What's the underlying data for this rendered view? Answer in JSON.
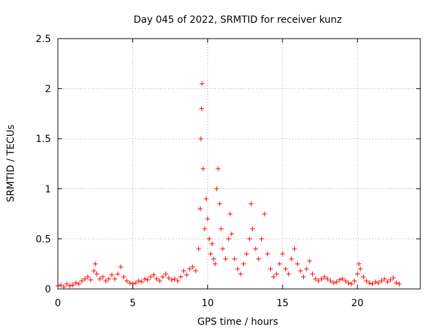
{
  "chart_data": {
    "type": "scatter",
    "title": "Day 045 of 2022, SRMTID for receiver kunz",
    "xlabel": "GPS time / hours",
    "ylabel": "SRMTID / TECUs",
    "xlim": [
      0,
      24.2
    ],
    "ylim": [
      0,
      2.5
    ],
    "x_ticks": [
      0,
      5,
      10,
      15,
      20
    ],
    "x_tick_labels": [
      "0",
      "5",
      "10",
      "15",
      "20"
    ],
    "y_ticks": [
      0,
      0.5,
      1,
      1.5,
      2,
      2.5
    ],
    "y_tick_labels": [
      "0",
      "0.5",
      "1",
      "1.5",
      "2",
      "2.5"
    ],
    "grid": true,
    "marker": "plus",
    "marker_color": "#ff0000",
    "series": [
      {
        "name": "SRMTID",
        "points": [
          [
            0.0,
            0.03
          ],
          [
            0.2,
            0.04
          ],
          [
            0.4,
            0.02
          ],
          [
            0.6,
            0.05
          ],
          [
            0.8,
            0.03
          ],
          [
            1.0,
            0.04
          ],
          [
            1.2,
            0.06
          ],
          [
            1.4,
            0.05
          ],
          [
            1.6,
            0.08
          ],
          [
            1.8,
            0.1
          ],
          [
            2.0,
            0.12
          ],
          [
            2.2,
            0.09
          ],
          [
            2.4,
            0.18
          ],
          [
            2.5,
            0.25
          ],
          [
            2.6,
            0.15
          ],
          [
            2.8,
            0.1
          ],
          [
            3.0,
            0.12
          ],
          [
            3.2,
            0.08
          ],
          [
            3.4,
            0.1
          ],
          [
            3.6,
            0.14
          ],
          [
            3.8,
            0.1
          ],
          [
            4.0,
            0.15
          ],
          [
            4.2,
            0.22
          ],
          [
            4.4,
            0.12
          ],
          [
            4.6,
            0.08
          ],
          [
            4.8,
            0.06
          ],
          [
            5.0,
            0.05
          ],
          [
            5.2,
            0.06
          ],
          [
            5.4,
            0.08
          ],
          [
            5.6,
            0.07
          ],
          [
            5.8,
            0.1
          ],
          [
            6.0,
            0.09
          ],
          [
            6.2,
            0.12
          ],
          [
            6.4,
            0.14
          ],
          [
            6.6,
            0.1
          ],
          [
            6.8,
            0.08
          ],
          [
            7.0,
            0.12
          ],
          [
            7.2,
            0.15
          ],
          [
            7.4,
            0.11
          ],
          [
            7.6,
            0.09
          ],
          [
            7.8,
            0.1
          ],
          [
            8.0,
            0.08
          ],
          [
            8.2,
            0.12
          ],
          [
            8.4,
            0.18
          ],
          [
            8.6,
            0.14
          ],
          [
            8.8,
            0.2
          ],
          [
            9.0,
            0.22
          ],
          [
            9.2,
            0.18
          ],
          [
            9.4,
            0.4
          ],
          [
            9.5,
            0.8
          ],
          [
            9.55,
            1.5
          ],
          [
            9.6,
            1.8
          ],
          [
            9.62,
            2.05
          ],
          [
            9.7,
            1.2
          ],
          [
            9.8,
            0.6
          ],
          [
            9.9,
            0.9
          ],
          [
            10.0,
            0.7
          ],
          [
            10.1,
            0.5
          ],
          [
            10.2,
            0.35
          ],
          [
            10.3,
            0.45
          ],
          [
            10.4,
            0.3
          ],
          [
            10.5,
            0.25
          ],
          [
            10.6,
            1.0
          ],
          [
            10.7,
            1.2
          ],
          [
            10.8,
            0.85
          ],
          [
            10.9,
            0.6
          ],
          [
            11.0,
            0.4
          ],
          [
            11.2,
            0.3
          ],
          [
            11.4,
            0.5
          ],
          [
            11.5,
            0.75
          ],
          [
            11.6,
            0.55
          ],
          [
            11.8,
            0.3
          ],
          [
            12.0,
            0.2
          ],
          [
            12.2,
            0.15
          ],
          [
            12.4,
            0.25
          ],
          [
            12.6,
            0.35
          ],
          [
            12.8,
            0.5
          ],
          [
            12.9,
            0.85
          ],
          [
            13.0,
            0.6
          ],
          [
            13.2,
            0.4
          ],
          [
            13.4,
            0.3
          ],
          [
            13.6,
            0.5
          ],
          [
            13.8,
            0.75
          ],
          [
            14.0,
            0.35
          ],
          [
            14.2,
            0.2
          ],
          [
            14.4,
            0.12
          ],
          [
            14.6,
            0.15
          ],
          [
            14.8,
            0.25
          ],
          [
            15.0,
            0.35
          ],
          [
            15.2,
            0.2
          ],
          [
            15.4,
            0.15
          ],
          [
            15.6,
            0.3
          ],
          [
            15.8,
            0.4
          ],
          [
            16.0,
            0.25
          ],
          [
            16.2,
            0.18
          ],
          [
            16.4,
            0.12
          ],
          [
            16.6,
            0.2
          ],
          [
            16.8,
            0.28
          ],
          [
            17.0,
            0.15
          ],
          [
            17.2,
            0.1
          ],
          [
            17.4,
            0.08
          ],
          [
            17.6,
            0.1
          ],
          [
            17.8,
            0.12
          ],
          [
            18.0,
            0.1
          ],
          [
            18.2,
            0.08
          ],
          [
            18.4,
            0.06
          ],
          [
            18.6,
            0.07
          ],
          [
            18.8,
            0.09
          ],
          [
            19.0,
            0.1
          ],
          [
            19.2,
            0.08
          ],
          [
            19.4,
            0.06
          ],
          [
            19.6,
            0.05
          ],
          [
            19.8,
            0.08
          ],
          [
            20.0,
            0.15
          ],
          [
            20.1,
            0.25
          ],
          [
            20.2,
            0.2
          ],
          [
            20.4,
            0.12
          ],
          [
            20.6,
            0.08
          ],
          [
            20.8,
            0.06
          ],
          [
            21.0,
            0.05
          ],
          [
            21.2,
            0.07
          ],
          [
            21.4,
            0.06
          ],
          [
            21.6,
            0.08
          ],
          [
            21.8,
            0.1
          ],
          [
            22.0,
            0.07
          ],
          [
            22.2,
            0.09
          ],
          [
            22.4,
            0.11
          ],
          [
            22.6,
            0.06
          ],
          [
            22.8,
            0.05
          ]
        ]
      }
    ]
  }
}
